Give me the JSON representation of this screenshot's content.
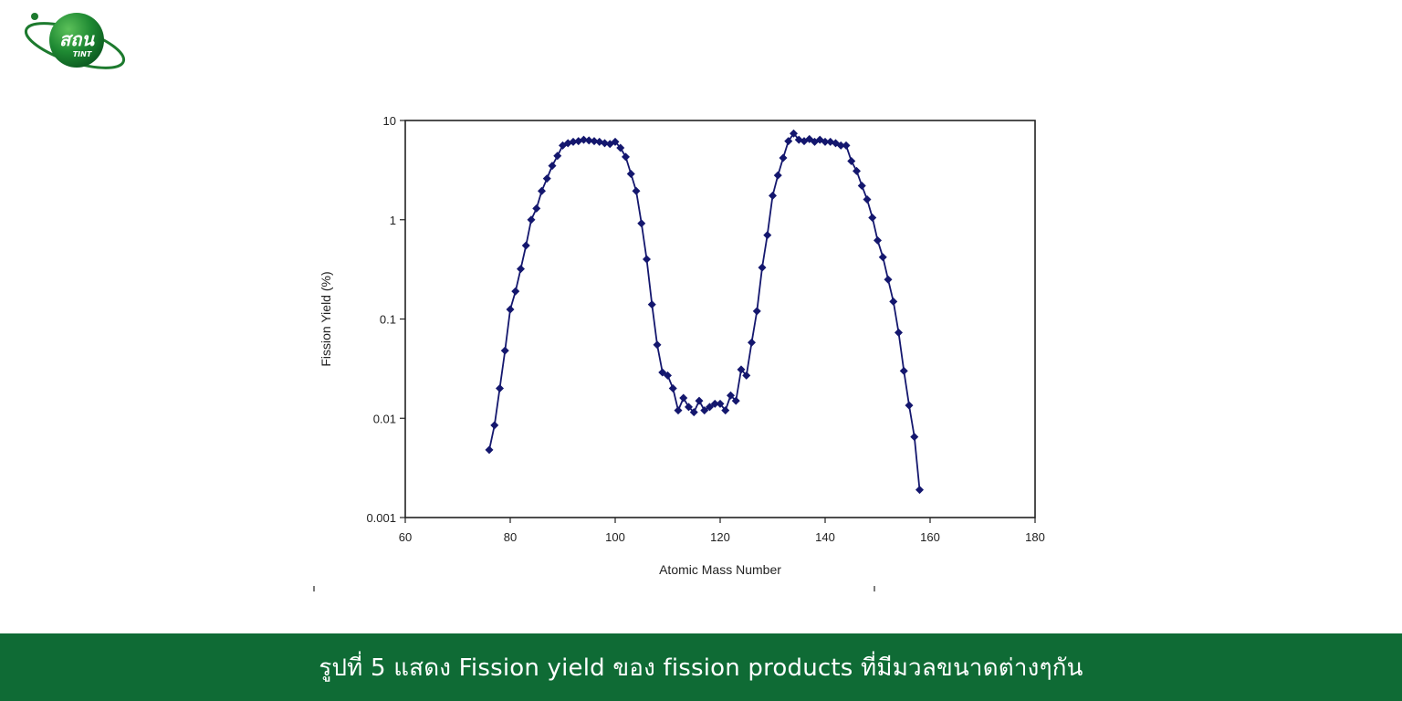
{
  "logo": {
    "icon": "globe-orbit-logo",
    "text_main": "สถน",
    "text_sub": "TINT",
    "color": "#1d7a2e"
  },
  "caption": {
    "text": "รูปที่ 5 แสดง Fission yield ของ fission products ที่มีมวลขนาดต่างๆกัน",
    "background": "#0f6b35"
  },
  "chart_data": {
    "type": "line",
    "yscale": "log",
    "xlabel": "Atomic Mass Number",
    "ylabel": "Fission Yield (%)",
    "xlim": [
      60,
      180
    ],
    "ylim": [
      0.001,
      10
    ],
    "xticks": [
      "60",
      "80",
      "100",
      "120",
      "140",
      "160",
      "180"
    ],
    "yticks": [
      "0.001",
      "0.01",
      "0.1",
      "1",
      "10"
    ],
    "grid": false,
    "legend": "none",
    "marker": "diamond",
    "series_color": "#14176e",
    "x": [
      76,
      77,
      78,
      79,
      80,
      81,
      82,
      83,
      84,
      85,
      86,
      87,
      88,
      89,
      90,
      91,
      92,
      93,
      94,
      95,
      96,
      97,
      98,
      99,
      100,
      101,
      102,
      103,
      104,
      105,
      106,
      107,
      108,
      109,
      110,
      111,
      112,
      113,
      114,
      115,
      116,
      117,
      118,
      119,
      120,
      121,
      122,
      123,
      124,
      125,
      126,
      127,
      128,
      129,
      130,
      131,
      132,
      133,
      134,
      135,
      136,
      137,
      138,
      139,
      140,
      141,
      142,
      143,
      144,
      145,
      146,
      147,
      148,
      149,
      150,
      151,
      152,
      153,
      154,
      155,
      156,
      157,
      158
    ],
    "y": [
      0.0048,
      0.0085,
      0.02,
      0.048,
      0.125,
      0.19,
      0.32,
      0.55,
      1.0,
      1.3,
      1.95,
      2.6,
      3.5,
      4.4,
      5.6,
      5.9,
      6.1,
      6.2,
      6.4,
      6.3,
      6.2,
      6.1,
      5.9,
      5.8,
      6.1,
      5.3,
      4.3,
      2.9,
      1.95,
      0.92,
      0.4,
      0.14,
      0.055,
      0.029,
      0.027,
      0.02,
      0.012,
      0.016,
      0.013,
      0.0115,
      0.015,
      0.012,
      0.013,
      0.014,
      0.014,
      0.012,
      0.017,
      0.015,
      0.031,
      0.027,
      0.058,
      0.12,
      0.33,
      0.7,
      1.75,
      2.8,
      4.2,
      6.2,
      7.4,
      6.4,
      6.2,
      6.5,
      6.1,
      6.4,
      6.1,
      6.1,
      5.9,
      5.6,
      5.6,
      3.9,
      3.1,
      2.2,
      1.6,
      1.05,
      0.62,
      0.42,
      0.25,
      0.15,
      0.073,
      0.03,
      0.0135,
      0.0065,
      0.0019
    ]
  }
}
